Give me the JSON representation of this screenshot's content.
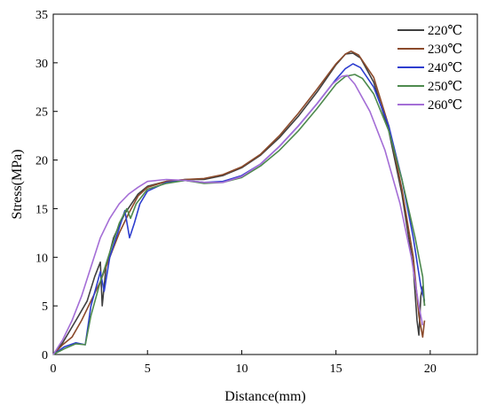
{
  "chart_data": {
    "type": "line",
    "title": "",
    "xlabel": "Distance(mm)",
    "ylabel": "Stress(MPa)",
    "xlim": [
      0,
      22.5
    ],
    "ylim": [
      0,
      35
    ],
    "x_ticks": [
      0,
      5,
      10,
      15,
      20
    ],
    "y_ticks": [
      0,
      5,
      10,
      15,
      20,
      25,
      30,
      35
    ],
    "legend_position": "top-right",
    "grid": false,
    "series": [
      {
        "name": "220℃",
        "color": "#404040",
        "points": [
          [
            0,
            0
          ],
          [
            0.5,
            1.2
          ],
          [
            1.2,
            3.5
          ],
          [
            1.8,
            5.5
          ],
          [
            2.2,
            8
          ],
          [
            2.5,
            9.5
          ],
          [
            2.6,
            5
          ],
          [
            2.8,
            9
          ],
          [
            3.2,
            12
          ],
          [
            3.8,
            14.5
          ],
          [
            4.5,
            16.5
          ],
          [
            5,
            17.3
          ],
          [
            6,
            17.8
          ],
          [
            7,
            18
          ],
          [
            8,
            18
          ],
          [
            9,
            18.4
          ],
          [
            10,
            19.2
          ],
          [
            11,
            20.5
          ],
          [
            12,
            22.3
          ],
          [
            13,
            24.5
          ],
          [
            14,
            27
          ],
          [
            15,
            29.8
          ],
          [
            15.5,
            30.9
          ],
          [
            15.9,
            31
          ],
          [
            16.3,
            30.5
          ],
          [
            17,
            28
          ],
          [
            17.8,
            23
          ],
          [
            18.5,
            16.5
          ],
          [
            19.1,
            9
          ],
          [
            19.3,
            3.5
          ],
          [
            19.4,
            2
          ],
          [
            19.5,
            6
          ],
          [
            19.6,
            7
          ],
          [
            19.7,
            5
          ]
        ]
      },
      {
        "name": "230℃",
        "color": "#8b4a2b",
        "points": [
          [
            0,
            0
          ],
          [
            0.5,
            1
          ],
          [
            1,
            1.8
          ],
          [
            1.5,
            3.5
          ],
          [
            2,
            5.5
          ],
          [
            2.5,
            7.5
          ],
          [
            3,
            10
          ],
          [
            3.5,
            12.5
          ],
          [
            4,
            14.5
          ],
          [
            4.5,
            16.3
          ],
          [
            5,
            17.2
          ],
          [
            6,
            17.8
          ],
          [
            7,
            18
          ],
          [
            8,
            18.1
          ],
          [
            9,
            18.5
          ],
          [
            10,
            19.3
          ],
          [
            11,
            20.6
          ],
          [
            12,
            22.5
          ],
          [
            13,
            24.8
          ],
          [
            14,
            27.3
          ],
          [
            15,
            29.9
          ],
          [
            15.5,
            30.9
          ],
          [
            15.8,
            31.2
          ],
          [
            16.2,
            30.8
          ],
          [
            17,
            28.5
          ],
          [
            17.8,
            23.5
          ],
          [
            18.5,
            17
          ],
          [
            19.1,
            10
          ],
          [
            19.4,
            4
          ],
          [
            19.6,
            1.8
          ],
          [
            19.7,
            3.5
          ]
        ]
      },
      {
        "name": "240℃",
        "color": "#2e3ecf",
        "points": [
          [
            0,
            0
          ],
          [
            0.6,
            0.8
          ],
          [
            1.2,
            1.2
          ],
          [
            1.7,
            1
          ],
          [
            2,
            5
          ],
          [
            2.5,
            8.5
          ],
          [
            2.7,
            6.5
          ],
          [
            3,
            10
          ],
          [
            3.5,
            13
          ],
          [
            3.8,
            14.8
          ],
          [
            4.05,
            12
          ],
          [
            4.3,
            13.5
          ],
          [
            4.6,
            15.5
          ],
          [
            5,
            16.8
          ],
          [
            6,
            17.7
          ],
          [
            7,
            17.9
          ],
          [
            8,
            17.7
          ],
          [
            9,
            17.8
          ],
          [
            10,
            18.4
          ],
          [
            11,
            19.6
          ],
          [
            12,
            21.4
          ],
          [
            13,
            23.5
          ],
          [
            14,
            25.8
          ],
          [
            15,
            28.3
          ],
          [
            15.5,
            29.4
          ],
          [
            15.9,
            29.9
          ],
          [
            16.3,
            29.5
          ],
          [
            17,
            27.5
          ],
          [
            17.8,
            23.5
          ],
          [
            18.5,
            18
          ],
          [
            19.1,
            12
          ],
          [
            19.5,
            7
          ],
          [
            19.7,
            5.5
          ]
        ]
      },
      {
        "name": "250℃",
        "color": "#4e8a4e",
        "points": [
          [
            0,
            0
          ],
          [
            0.6,
            0.6
          ],
          [
            1.2,
            1.1
          ],
          [
            1.7,
            1
          ],
          [
            2,
            4
          ],
          [
            2.5,
            7.5
          ],
          [
            3,
            10.5
          ],
          [
            3.5,
            13.5
          ],
          [
            3.9,
            15
          ],
          [
            4.1,
            14
          ],
          [
            4.4,
            15.5
          ],
          [
            5,
            17
          ],
          [
            6,
            17.6
          ],
          [
            7,
            17.9
          ],
          [
            8,
            17.6
          ],
          [
            9,
            17.7
          ],
          [
            10,
            18.2
          ],
          [
            11,
            19.4
          ],
          [
            12,
            21
          ],
          [
            13,
            23
          ],
          [
            14,
            25.3
          ],
          [
            15,
            27.8
          ],
          [
            15.5,
            28.6
          ],
          [
            16,
            28.8
          ],
          [
            16.4,
            28.4
          ],
          [
            17,
            26.8
          ],
          [
            17.8,
            23
          ],
          [
            18.5,
            18
          ],
          [
            19.2,
            12
          ],
          [
            19.6,
            8
          ],
          [
            19.7,
            5
          ]
        ]
      },
      {
        "name": "260℃",
        "color": "#a46ed6",
        "points": [
          [
            0,
            0
          ],
          [
            0.5,
            1.5
          ],
          [
            1,
            3.5
          ],
          [
            1.5,
            6
          ],
          [
            2,
            9
          ],
          [
            2.5,
            12
          ],
          [
            3,
            14
          ],
          [
            3.5,
            15.5
          ],
          [
            4,
            16.5
          ],
          [
            4.5,
            17.2
          ],
          [
            5,
            17.8
          ],
          [
            6,
            18
          ],
          [
            7,
            17.9
          ],
          [
            8,
            17.7
          ],
          [
            9,
            17.7
          ],
          [
            10,
            18.3
          ],
          [
            11,
            19.6
          ],
          [
            12,
            21.4
          ],
          [
            13,
            23.5
          ],
          [
            14,
            25.8
          ],
          [
            14.8,
            27.8
          ],
          [
            15.3,
            28.6
          ],
          [
            15.6,
            28.7
          ],
          [
            16,
            27.8
          ],
          [
            16.8,
            25
          ],
          [
            17.6,
            21
          ],
          [
            18.4,
            15.5
          ],
          [
            19,
            10
          ],
          [
            19.4,
            5
          ],
          [
            19.6,
            3
          ]
        ]
      }
    ]
  }
}
